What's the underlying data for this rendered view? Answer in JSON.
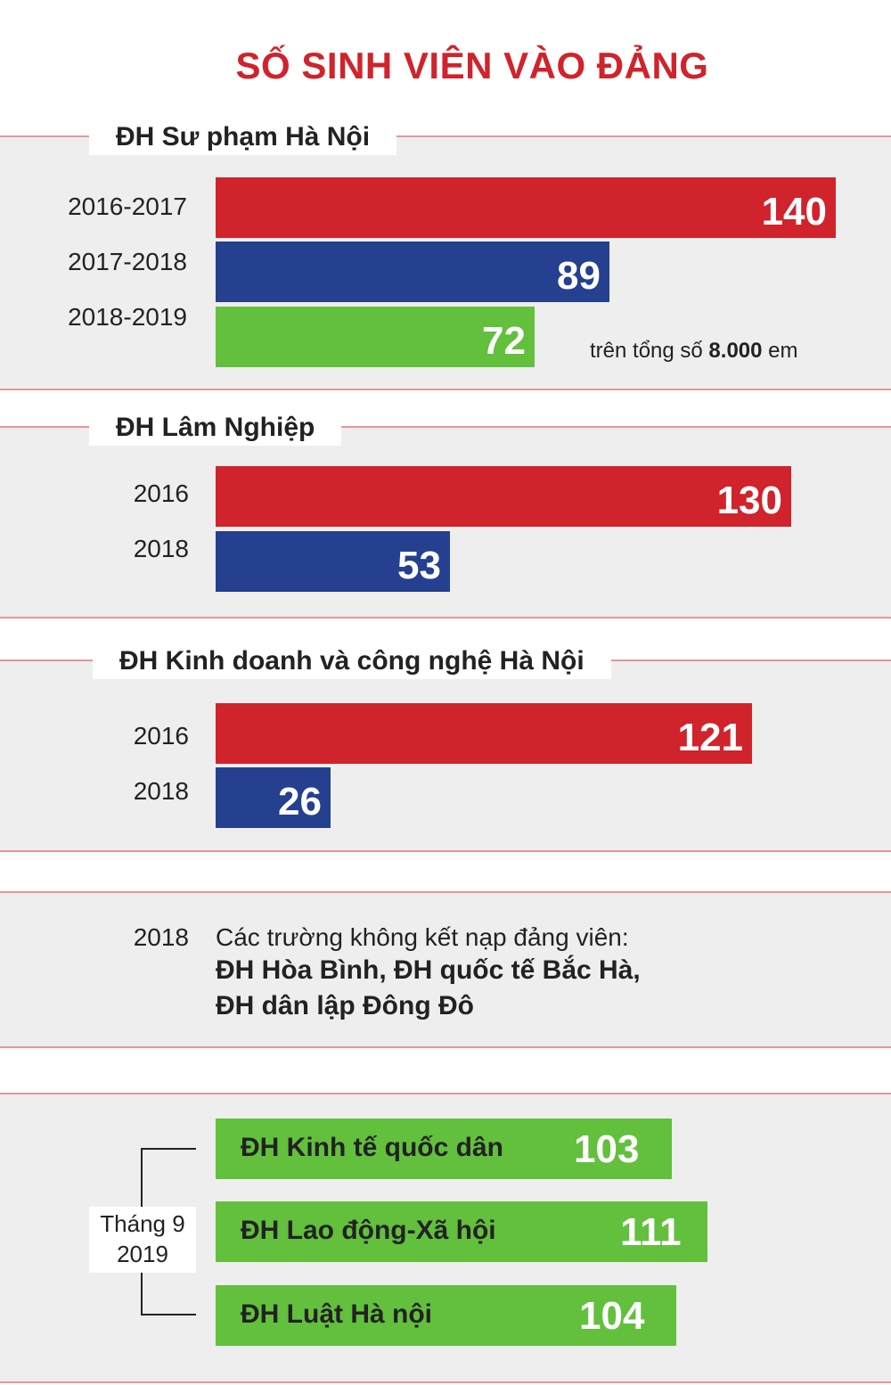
{
  "title": "SỐ SINH VIÊN VÀO ĐẢNG",
  "colors": {
    "red": "#d0232b",
    "blue": "#24408e",
    "green": "#62c03d",
    "rule": "#e8959a"
  },
  "chart_data": [
    {
      "type": "bar",
      "title": "ĐH Sư phạm Hà Nội",
      "categories": [
        "2016-2017",
        "2017-2018",
        "2018-2019"
      ],
      "values": [
        140,
        89,
        72
      ],
      "note_prefix": "trên tổng số ",
      "note_bold": "8.000",
      "note_suffix": " em"
    },
    {
      "type": "bar",
      "title": "ĐH Lâm Nghiệp",
      "categories": [
        "2016",
        "2018"
      ],
      "values": [
        130,
        53
      ]
    },
    {
      "type": "bar",
      "title": "ĐH Kinh doanh và công nghệ Hà Nội",
      "categories": [
        "2016",
        "2018"
      ],
      "values": [
        121,
        26
      ]
    },
    {
      "type": "bar",
      "period_line1": "Tháng 9",
      "period_line2": "2019",
      "categories": [
        "ĐH Kinh tế quốc dân",
        "ĐH Lao động-Xã hội",
        "ĐH Luật Hà nội"
      ],
      "values": [
        103,
        111,
        104
      ]
    }
  ],
  "no_admission": {
    "year": "2018",
    "intro": "Các trường không kết nạp đảng viên:",
    "line1": "ĐH Hòa Bình, ĐH quốc tế Bắc Hà,",
    "line2": "ĐH dân lập Đông Đô"
  }
}
